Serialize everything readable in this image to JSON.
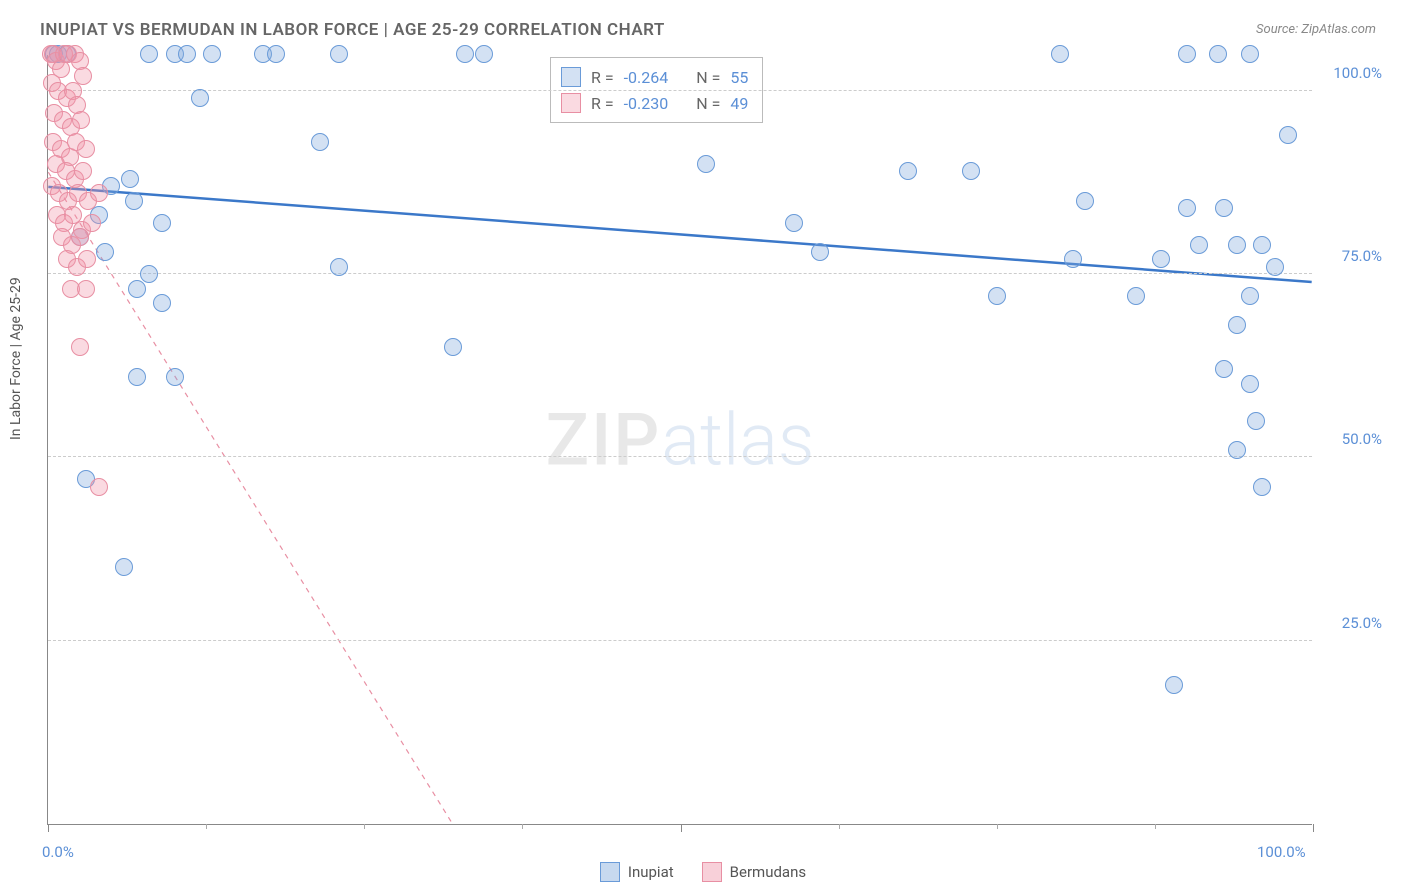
{
  "title": "INUPIAT VS BERMUDAN IN LABOR FORCE | AGE 25-29 CORRELATION CHART",
  "source": "Source: ZipAtlas.com",
  "yaxis_label": "In Labor Force | Age 25-29",
  "watermark": {
    "part1": "ZIP",
    "part2": "atlas"
  },
  "chart": {
    "type": "scatter",
    "xlim": [
      0,
      100
    ],
    "ylim": [
      0,
      105
    ],
    "x_ticks_major": [
      0,
      50,
      100
    ],
    "x_ticks_minor": [
      12.5,
      25,
      37.5,
      62.5,
      75,
      87.5
    ],
    "x_tick_labels": [
      {
        "pos": 0,
        "text": "0.0%"
      },
      {
        "pos": 100,
        "text": "100.0%"
      }
    ],
    "y_gridlines": [
      25,
      50,
      75,
      100
    ],
    "y_tick_labels": [
      {
        "pos": 25,
        "text": "25.0%"
      },
      {
        "pos": 50,
        "text": "50.0%"
      },
      {
        "pos": 75,
        "text": "75.0%"
      },
      {
        "pos": 100,
        "text": "100.0%"
      }
    ],
    "background_color": "#ffffff",
    "grid_color": "#cccccc",
    "axis_color": "#888888",
    "tick_label_color": "#5b8fd6",
    "marker_radius": 9,
    "marker_stroke_width": 1.3,
    "series": [
      {
        "name": "Inupiat",
        "fill": "rgba(130,170,220,0.35)",
        "stroke": "#6a9bd8",
        "trend": {
          "x1": 0,
          "y1": 87,
          "x2": 100,
          "y2": 74,
          "stroke": "#3b78c9",
          "width": 2.5,
          "dash": "none"
        },
        "R": "-0.264",
        "N": "55",
        "points": [
          [
            0.5,
            105
          ],
          [
            0.8,
            105
          ],
          [
            1.5,
            105
          ],
          [
            8,
            105
          ],
          [
            10,
            105
          ],
          [
            11,
            105
          ],
          [
            13,
            105
          ],
          [
            17,
            105
          ],
          [
            18,
            105
          ],
          [
            23,
            105
          ],
          [
            33,
            105
          ],
          [
            34.5,
            105
          ],
          [
            80,
            105
          ],
          [
            90,
            105
          ],
          [
            92.5,
            105
          ],
          [
            95,
            105
          ],
          [
            12,
            99
          ],
          [
            21.5,
            93
          ],
          [
            98,
            94
          ],
          [
            5,
            87
          ],
          [
            6.5,
            88
          ],
          [
            6.8,
            85
          ],
          [
            52,
            90
          ],
          [
            68,
            89
          ],
          [
            73,
            89
          ],
          [
            82,
            85
          ],
          [
            4,
            83
          ],
          [
            9,
            82
          ],
          [
            59,
            82
          ],
          [
            90,
            84
          ],
          [
            93,
            84
          ],
          [
            2.5,
            80
          ],
          [
            4.5,
            78
          ],
          [
            8,
            75
          ],
          [
            23,
            76
          ],
          [
            61,
            78
          ],
          [
            81,
            77
          ],
          [
            88,
            77
          ],
          [
            91,
            79
          ],
          [
            94,
            79
          ],
          [
            96,
            79
          ],
          [
            97,
            76
          ],
          [
            7,
            73
          ],
          [
            9,
            71
          ],
          [
            75,
            72
          ],
          [
            86,
            72
          ],
          [
            95,
            72
          ],
          [
            94,
            68
          ],
          [
            7,
            61
          ],
          [
            10,
            61
          ],
          [
            32,
            65
          ],
          [
            93,
            62
          ],
          [
            95,
            60
          ],
          [
            95.5,
            55
          ],
          [
            94,
            51
          ],
          [
            3,
            47
          ],
          [
            96,
            46
          ],
          [
            6,
            35
          ],
          [
            89,
            19
          ]
        ]
      },
      {
        "name": "Bermudans",
        "fill": "rgba(240,150,170,0.35)",
        "stroke": "#e88fa3",
        "trend": {
          "x1": 0,
          "y1": 89,
          "x2": 32,
          "y2": 0,
          "stroke": "#e88fa3",
          "width": 1.2,
          "dash": "5,5"
        },
        "R": "-0.230",
        "N": "49",
        "points": [
          [
            0.2,
            105
          ],
          [
            0.4,
            105
          ],
          [
            0.6,
            104
          ],
          [
            1.0,
            103
          ],
          [
            1.3,
            105
          ],
          [
            1.6,
            105
          ],
          [
            2.1,
            105
          ],
          [
            2.5,
            104
          ],
          [
            2.8,
            102
          ],
          [
            0.3,
            101
          ],
          [
            0.8,
            100
          ],
          [
            1.5,
            99
          ],
          [
            2.0,
            100
          ],
          [
            2.3,
            98
          ],
          [
            0.5,
            97
          ],
          [
            1.2,
            96
          ],
          [
            1.8,
            95
          ],
          [
            2.6,
            96
          ],
          [
            0.4,
            93
          ],
          [
            1.0,
            92
          ],
          [
            1.7,
            91
          ],
          [
            2.2,
            93
          ],
          [
            3.0,
            92
          ],
          [
            0.6,
            90
          ],
          [
            1.4,
            89
          ],
          [
            2.1,
            88
          ],
          [
            2.8,
            89
          ],
          [
            0.3,
            87
          ],
          [
            0.9,
            86
          ],
          [
            1.6,
            85
          ],
          [
            2.4,
            86
          ],
          [
            3.2,
            85
          ],
          [
            4.0,
            86
          ],
          [
            0.7,
            83
          ],
          [
            1.3,
            82
          ],
          [
            2.0,
            83
          ],
          [
            2.7,
            81
          ],
          [
            3.5,
            82
          ],
          [
            1.1,
            80
          ],
          [
            1.9,
            79
          ],
          [
            2.5,
            80
          ],
          [
            1.5,
            77
          ],
          [
            2.3,
            76
          ],
          [
            3.1,
            77
          ],
          [
            1.8,
            73
          ],
          [
            3.0,
            73
          ],
          [
            2.5,
            65
          ],
          [
            4.0,
            46
          ]
        ]
      }
    ]
  },
  "legend": {
    "items": [
      {
        "label": "Inupiat",
        "fill": "rgba(130,170,220,0.45)",
        "stroke": "#6a9bd8"
      },
      {
        "label": "Bermudans",
        "fill": "rgba(240,150,170,0.45)",
        "stroke": "#e88fa3"
      }
    ]
  }
}
